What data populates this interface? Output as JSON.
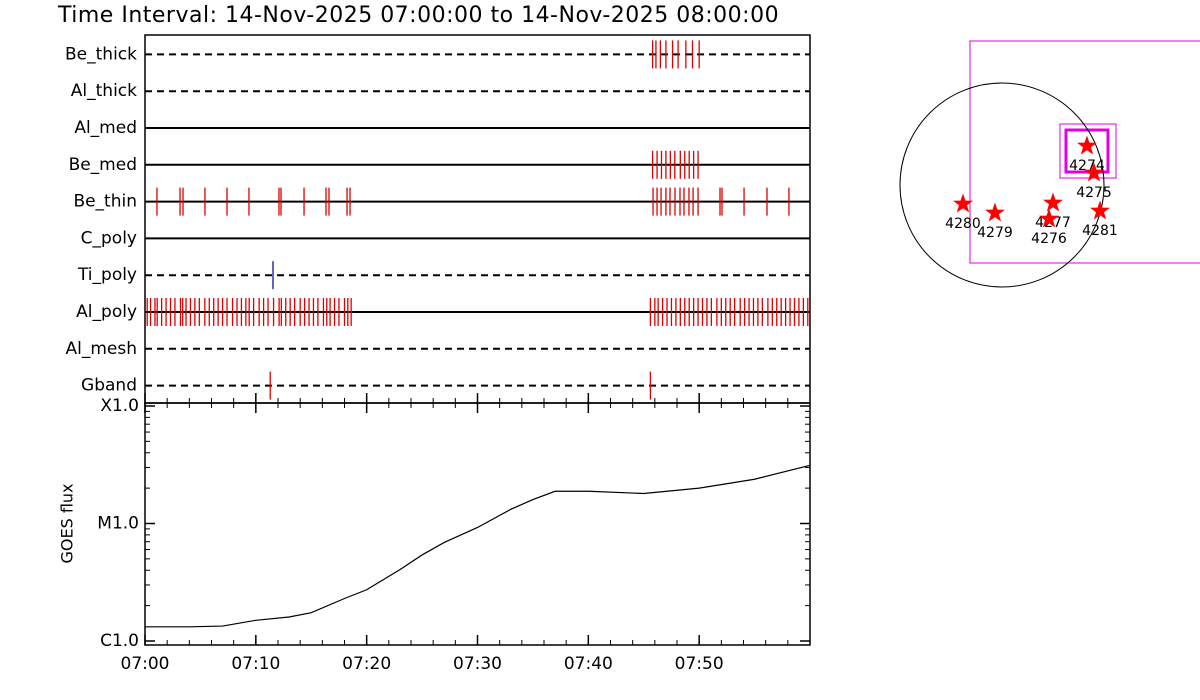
{
  "title": "Time Interval: 14-Nov-2025 07:00:00 to 14-Nov-2025 08:00:00",
  "chart_data": [
    {
      "type": "event",
      "xlim": [
        0,
        60
      ],
      "rows": [
        {
          "name": "Be_thick",
          "style": "dashed",
          "color": "#e00000",
          "events": [
            45.8,
            46.1,
            46.5,
            47.0,
            47.6,
            48.1,
            48.8,
            49.4,
            50.0
          ]
        },
        {
          "name": "Al_thick",
          "style": "dashed",
          "color": "#e00000",
          "events": []
        },
        {
          "name": "Al_med",
          "style": "solid",
          "color": "#e00000",
          "events": []
        },
        {
          "name": "Be_med",
          "style": "solid",
          "color": "#e00000",
          "events": [
            45.8,
            46.2,
            46.6,
            47.0,
            47.4,
            47.8,
            48.3,
            48.7,
            49.1,
            49.5,
            49.9
          ]
        },
        {
          "name": "Be_thin",
          "style": "solid",
          "color": "#e00000",
          "events": [
            1.08,
            3.16,
            3.43,
            5.41,
            7.4,
            9.38,
            12.09,
            12.27,
            14.35,
            16.33,
            16.6,
            18.23,
            18.5,
            45.84,
            46.2,
            46.56,
            47.0,
            47.37,
            47.82,
            48.27,
            48.63,
            49.08,
            49.45,
            49.9,
            51.88,
            52.06,
            54.05,
            56.12,
            58.1
          ]
        },
        {
          "name": "C_poly",
          "style": "solid",
          "color": "#e00000",
          "events": []
        },
        {
          "name": "Ti_poly",
          "style": "dashed",
          "color": "#1010a0",
          "events": [
            11.55
          ]
        },
        {
          "name": "Al_poly",
          "style": "solid",
          "color": "#e00000",
          "events": [
            0.2,
            0.5,
            0.9,
            1.1,
            1.5,
            1.9,
            2.3,
            2.7,
            3.2,
            3.4,
            3.7,
            4.1,
            4.5,
            4.9,
            5.4,
            5.8,
            6.2,
            6.6,
            7.0,
            7.4,
            7.9,
            8.3,
            8.7,
            9.1,
            9.4,
            9.8,
            10.3,
            10.7,
            11.1,
            11.6,
            12.1,
            12.3,
            12.7,
            13.1,
            13.5,
            14.0,
            14.4,
            14.8,
            15.2,
            15.6,
            16.1,
            16.4,
            16.7,
            17.1,
            17.5,
            18.0,
            18.3,
            18.6,
            45.6,
            46.0,
            46.3,
            46.7,
            47.1,
            47.5,
            47.9,
            48.3,
            48.7,
            49.1,
            49.5,
            49.9,
            50.3,
            50.7,
            51.1,
            51.6,
            52.0,
            52.4,
            52.8,
            53.2,
            53.7,
            54.1,
            54.5,
            54.9,
            55.3,
            55.7,
            56.2,
            56.6,
            57.0,
            57.4,
            57.8,
            58.2,
            58.6,
            59.0,
            59.4,
            59.8
          ]
        },
        {
          "name": "Al_mesh",
          "style": "dashed",
          "color": "#e00000",
          "events": []
        },
        {
          "name": "Gband",
          "style": "dashed",
          "color": "#e00000",
          "events": [
            11.3,
            45.6
          ]
        }
      ]
    },
    {
      "type": "line",
      "ylabel": "GOES flux",
      "log_y": true,
      "color": "#000000",
      "x": [
        0,
        4,
        7,
        10,
        13,
        15,
        18,
        20,
        23,
        25,
        27,
        30,
        33,
        35,
        37,
        40,
        45,
        50,
        55,
        60
      ],
      "values": [
        1.32e-06,
        1.32e-06,
        1.34e-06,
        1.5e-06,
        1.6e-06,
        1.74e-06,
        2.3e-06,
        2.73e-06,
        4.05e-06,
        5.4e-06,
        6.9e-06,
        9.25e-06,
        1.32e-05,
        1.6e-05,
        1.88e-05,
        1.88e-05,
        1.8e-05,
        2e-05,
        2.38e-05,
        3.13e-05
      ],
      "xlim": [
        0,
        60
      ],
      "xticks": [
        {
          "value": 0,
          "label": "07:00"
        },
        {
          "value": 10,
          "label": "07:10"
        },
        {
          "value": 20,
          "label": "07:20"
        },
        {
          "value": 30,
          "label": "07:30"
        },
        {
          "value": 40,
          "label": "07:40"
        },
        {
          "value": 50,
          "label": "07:50"
        }
      ],
      "ylim": [
        1e-06,
        0.0001
      ],
      "yticks": [
        {
          "value": 1e-06,
          "label": "C1.0"
        },
        {
          "value": 1e-05,
          "label": "M1.0"
        },
        {
          "value": 0.0001,
          "label": "X1.0"
        }
      ]
    },
    {
      "type": "map",
      "disk_radius": 970,
      "color": "#ff0000",
      "regions": [
        {
          "label": "4274",
          "x": 808,
          "y": 371
        },
        {
          "label": "4275",
          "x": 875,
          "y": 114
        },
        {
          "label": "4277",
          "x": 485,
          "y": -171
        },
        {
          "label": "4276",
          "x": 447,
          "y": -323
        },
        {
          "label": "4280",
          "x": -371,
          "y": -181
        },
        {
          "label": "4279",
          "x": -67,
          "y": -266
        },
        {
          "label": "4281",
          "x": 932,
          "y": -247
        }
      ]
    }
  ]
}
